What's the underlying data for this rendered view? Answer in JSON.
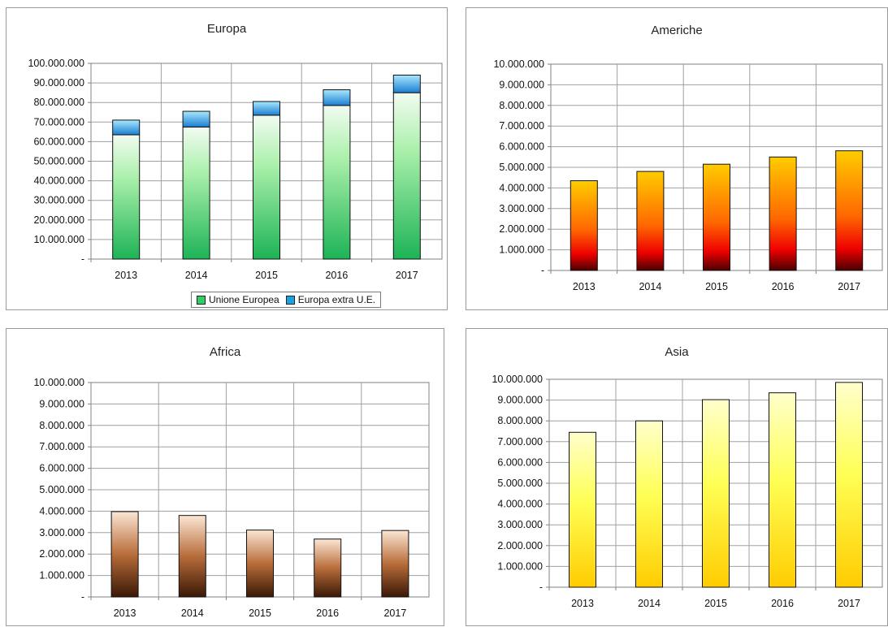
{
  "chart_data": [
    {
      "type": "bar",
      "stacked": true,
      "title": "Europa",
      "categories": [
        "2013",
        "2014",
        "2015",
        "2016",
        "2017"
      ],
      "ylim": [
        0,
        100000000
      ],
      "yticks": [
        "-",
        "10.000.000",
        "20.000.000",
        "30.000.000",
        "40.000.000",
        "50.000.000",
        "60.000.000",
        "70.000.000",
        "80.000.000",
        "90.000.000",
        "100.000.000"
      ],
      "series": [
        {
          "name": "Unione Europea",
          "values": [
            63500000,
            67500000,
            73500000,
            78500000,
            85000000
          ],
          "color": "#33cc66"
        },
        {
          "name": "Europa extra U.E.",
          "values": [
            7500000,
            8000000,
            7000000,
            8000000,
            9000000
          ],
          "color": "#1aa3e0"
        }
      ],
      "legend": "bottom",
      "grid": true
    },
    {
      "type": "bar",
      "title": "Americhe",
      "categories": [
        "2013",
        "2014",
        "2015",
        "2016",
        "2017"
      ],
      "ylim": [
        0,
        10000000
      ],
      "yticks": [
        "-",
        "1.000.000",
        "2.000.000",
        "3.000.000",
        "4.000.000",
        "5.000.000",
        "6.000.000",
        "7.000.000",
        "8.000.000",
        "9.000.000",
        "10.000.000"
      ],
      "series": [
        {
          "values": [
            4350000,
            4800000,
            5150000,
            5500000,
            5800000
          ],
          "color": "#ff3300"
        }
      ],
      "grid": true
    },
    {
      "type": "bar",
      "title": "Africa",
      "categories": [
        "2013",
        "2014",
        "2015",
        "2016",
        "2017"
      ],
      "ylim": [
        0,
        10000000
      ],
      "yticks": [
        "-",
        "1.000.000",
        "2.000.000",
        "3.000.000",
        "4.000.000",
        "5.000.000",
        "6.000.000",
        "7.000.000",
        "8.000.000",
        "9.000.000",
        "10.000.000"
      ],
      "series": [
        {
          "values": [
            3980000,
            3800000,
            3120000,
            2700000,
            3100000
          ],
          "color": "#8b4a22"
        }
      ],
      "grid": true
    },
    {
      "type": "bar",
      "title": "Asia",
      "categories": [
        "2013",
        "2014",
        "2015",
        "2016",
        "2017"
      ],
      "ylim": [
        0,
        10000000
      ],
      "yticks": [
        "-",
        "1.000.000",
        "2.000.000",
        "3.000.000",
        "4.000.000",
        "5.000.000",
        "6.000.000",
        "7.000.000",
        "8.000.000",
        "9.000.000",
        "10.000.000"
      ],
      "series": [
        {
          "values": [
            7450000,
            8000000,
            9020000,
            9350000,
            9850000
          ],
          "color": "#ffcc00"
        }
      ],
      "grid": true
    }
  ]
}
